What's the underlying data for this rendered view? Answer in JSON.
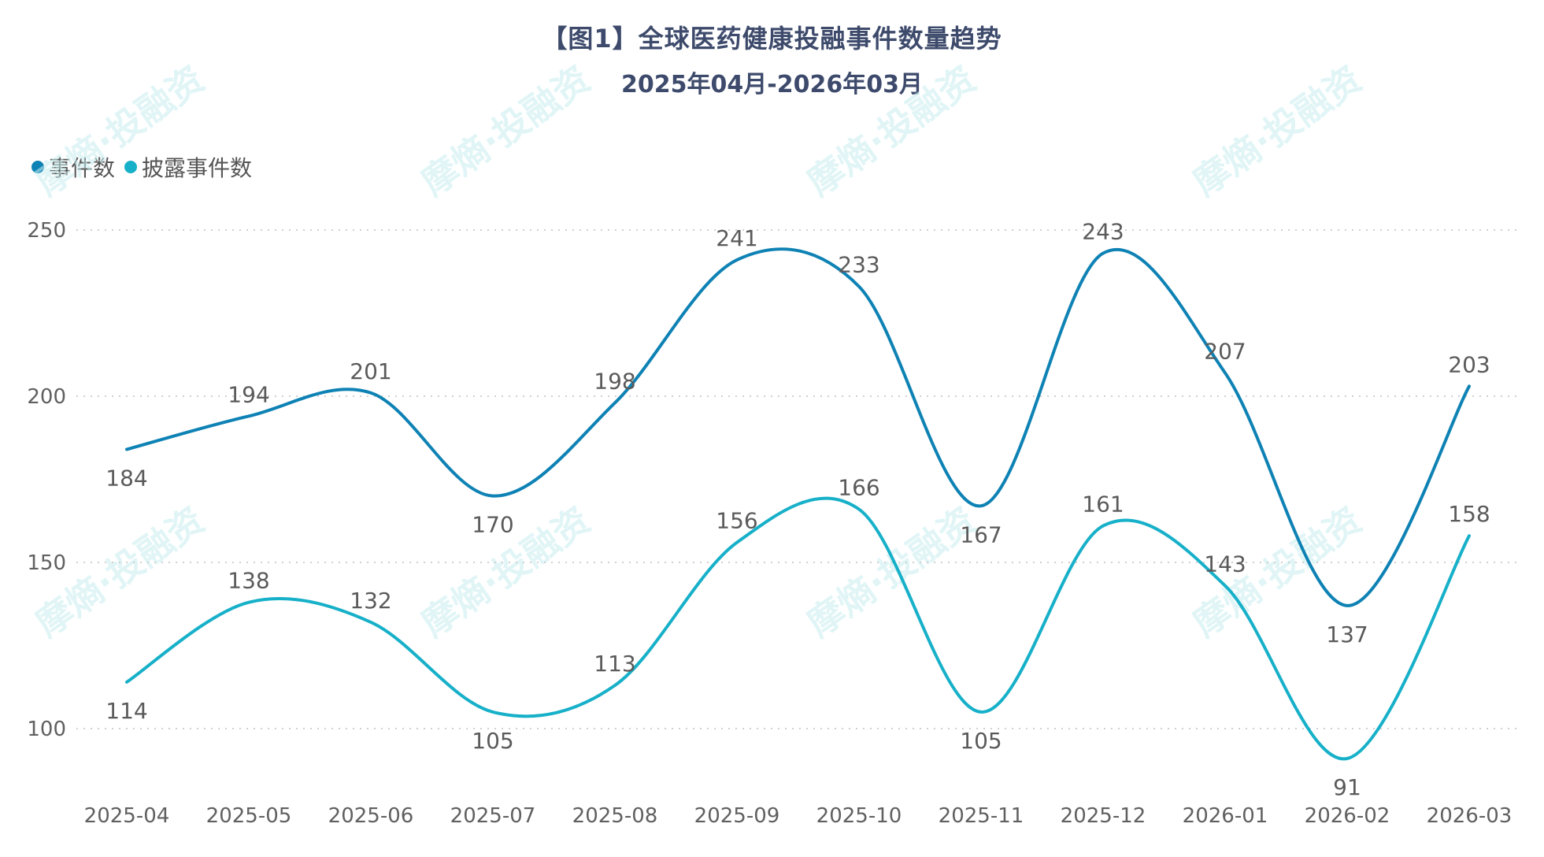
{
  "header": {
    "title": "【图1】全球医药健康投融事件数量趋势",
    "subtitle": "2025年04月-2026年03月"
  },
  "legend": {
    "items": [
      {
        "label": "事件数",
        "color": "#0E82B4"
      },
      {
        "label": "披露事件数",
        "color": "#17B0C9"
      }
    ]
  },
  "watermark": "摩熵·投融资",
  "chart_data": {
    "type": "line",
    "title": "【图1】全球医药健康投融事件数量趋势",
    "subtitle": "2025年04月-2026年03月",
    "xlabel": "",
    "ylabel": "",
    "categories": [
      "2025-04",
      "2025-05",
      "2025-06",
      "2025-07",
      "2025-08",
      "2025-09",
      "2025-10",
      "2025-11",
      "2025-12",
      "2026-01",
      "2026-02",
      "2026-03"
    ],
    "series": [
      {
        "name": "事件数",
        "color": "#0E82B4",
        "values": [
          184,
          194,
          201,
          170,
          198,
          241,
          233,
          167,
          243,
          207,
          137,
          203
        ]
      },
      {
        "name": "披露事件数",
        "color": "#17B0C9",
        "values": [
          114,
          138,
          132,
          105,
          113,
          156,
          166,
          105,
          161,
          143,
          91,
          158
        ]
      }
    ],
    "yticks": [
      100,
      150,
      200,
      250
    ],
    "ylim": [
      85,
      255
    ],
    "grid": "horizontal dotted",
    "legend_position": "top-left",
    "smooth": true,
    "data_labels": true
  }
}
